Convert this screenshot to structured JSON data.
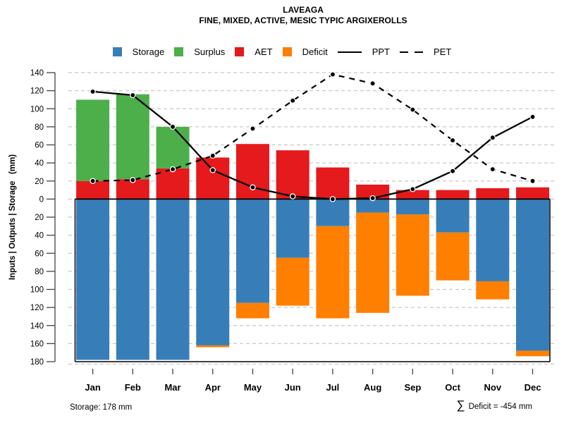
{
  "chart_data": {
    "type": "combo-stacked-bar-line",
    "title": "LAVEAGA",
    "subtitle": "FINE, MIXED, ACTIVE, MESIC TYPIC ARGIXEROLLS",
    "ylabel": "Inputs | Outputs | Storage   (mm)",
    "xlabel": "",
    "ylim": [
      -180,
      140
    ],
    "ytick_step": 20,
    "ytick_labels_absolute": true,
    "grid": "dashed-horizontal",
    "categories": [
      "Jan",
      "Feb",
      "Mar",
      "Apr",
      "May",
      "Jun",
      "Jul",
      "Aug",
      "Sep",
      "Oct",
      "Nov",
      "Dec"
    ],
    "series": [
      {
        "name": "Storage",
        "type": "bar",
        "direction": "down",
        "color": "#377EB8",
        "values": [
          178,
          178,
          178,
          162,
          115,
          65,
          30,
          15,
          17,
          37,
          91,
          168
        ]
      },
      {
        "name": "Deficit",
        "type": "bar",
        "direction": "down",
        "stacked_on": "Storage",
        "color": "#FF7F00",
        "values": [
          0,
          0,
          0,
          2,
          17,
          53,
          102,
          111,
          90,
          53,
          20,
          6
        ]
      },
      {
        "name": "AET",
        "type": "bar",
        "direction": "up",
        "color": "#E41A1C",
        "values": [
          20,
          22,
          34,
          46,
          61,
          54,
          35,
          16,
          10,
          10,
          12,
          13
        ]
      },
      {
        "name": "Surplus",
        "type": "bar",
        "direction": "up",
        "stacked_on": "AET",
        "color": "#4DAF4A",
        "values": [
          90,
          94,
          46,
          0,
          0,
          0,
          0,
          0,
          0,
          0,
          0,
          0
        ]
      },
      {
        "name": "PPT",
        "type": "line",
        "style": "solid",
        "color": "#000000",
        "values": [
          119,
          115,
          80,
          32,
          13,
          3,
          0,
          1,
          11,
          31,
          68,
          91
        ]
      },
      {
        "name": "PET",
        "type": "line",
        "style": "dashed",
        "color": "#000000",
        "values": [
          20,
          21,
          33,
          48,
          78,
          109,
          138,
          128,
          99,
          65,
          33,
          20
        ]
      }
    ],
    "legend": [
      {
        "label": "Storage",
        "type": "box",
        "color": "#377EB8"
      },
      {
        "label": "Surplus",
        "type": "box",
        "color": "#4DAF4A"
      },
      {
        "label": "AET",
        "type": "box",
        "color": "#E41A1C"
      },
      {
        "label": "Deficit",
        "type": "box",
        "color": "#FF7F00"
      },
      {
        "label": "PPT",
        "type": "line-solid",
        "color": "#000000"
      },
      {
        "label": "PET",
        "type": "line-dashed",
        "color": "#000000"
      }
    ],
    "legend_position": "top",
    "annotations": {
      "storage": "Storage: 178 mm",
      "sigma": "∑",
      "deficit": "Deficit = -454 mm"
    },
    "gridline_color": "#c8c8c8",
    "axis_color": "#434343"
  }
}
